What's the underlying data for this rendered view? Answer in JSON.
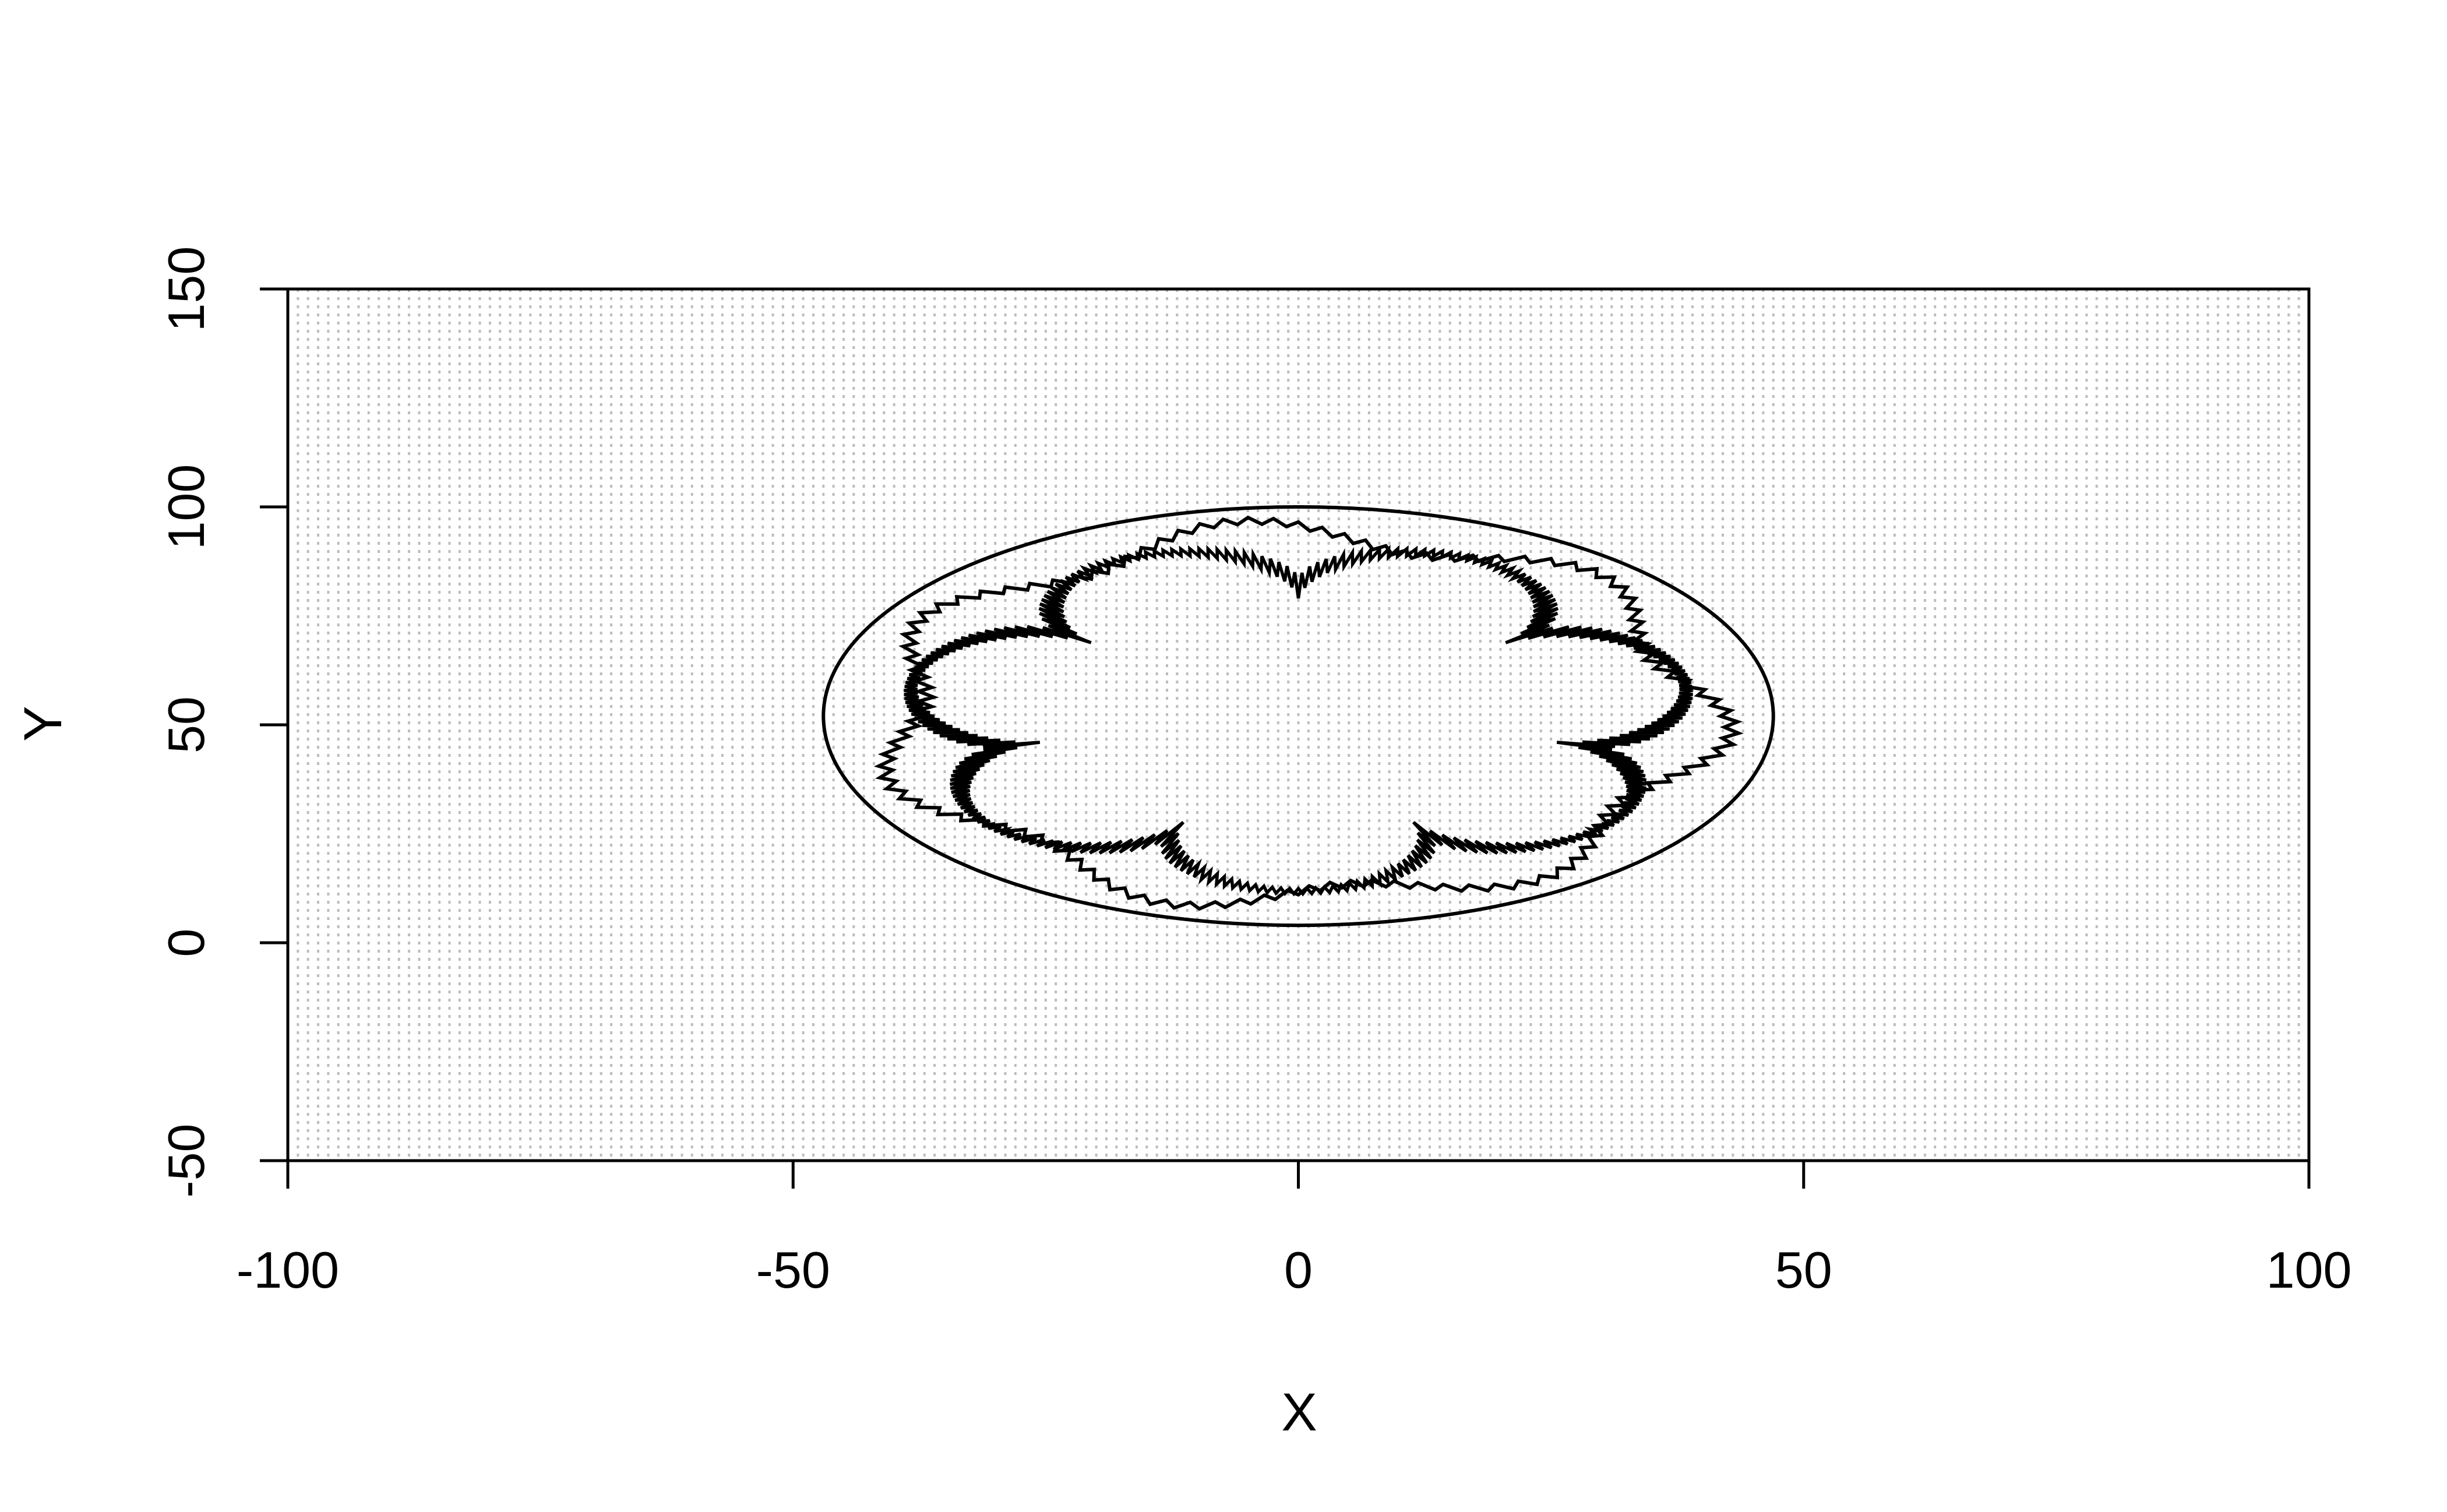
{
  "chart_data": {
    "type": "line",
    "title": "",
    "xlabel": "X",
    "ylabel": "Y",
    "xlim": [
      -100,
      100
    ],
    "ylim": [
      -50,
      150
    ],
    "x_ticks": [
      -100,
      -50,
      0,
      50,
      100
    ],
    "y_ticks": [
      -50,
      0,
      50,
      100,
      150
    ],
    "grid": "dense vertical dotted light-grey lines",
    "colors": {
      "series": "#000000",
      "grid": "#bdbdbd",
      "axis": "#000000"
    },
    "series": [
      {
        "shape": "ellipse",
        "center": [
          0,
          52
        ],
        "radius_x": 47,
        "radius_y": 48
      },
      {
        "shape": "jagged wavy ring",
        "center": [
          0,
          52
        ],
        "radius_x": 40,
        "radius_y": 42,
        "lobes": 7,
        "wave_amplitude": 3
      },
      {
        "shape": "seven-lobed jagged rosette",
        "center": [
          0,
          52
        ],
        "inner_radius": 28,
        "outer_radius": 39,
        "lobes": 7
      }
    ]
  }
}
